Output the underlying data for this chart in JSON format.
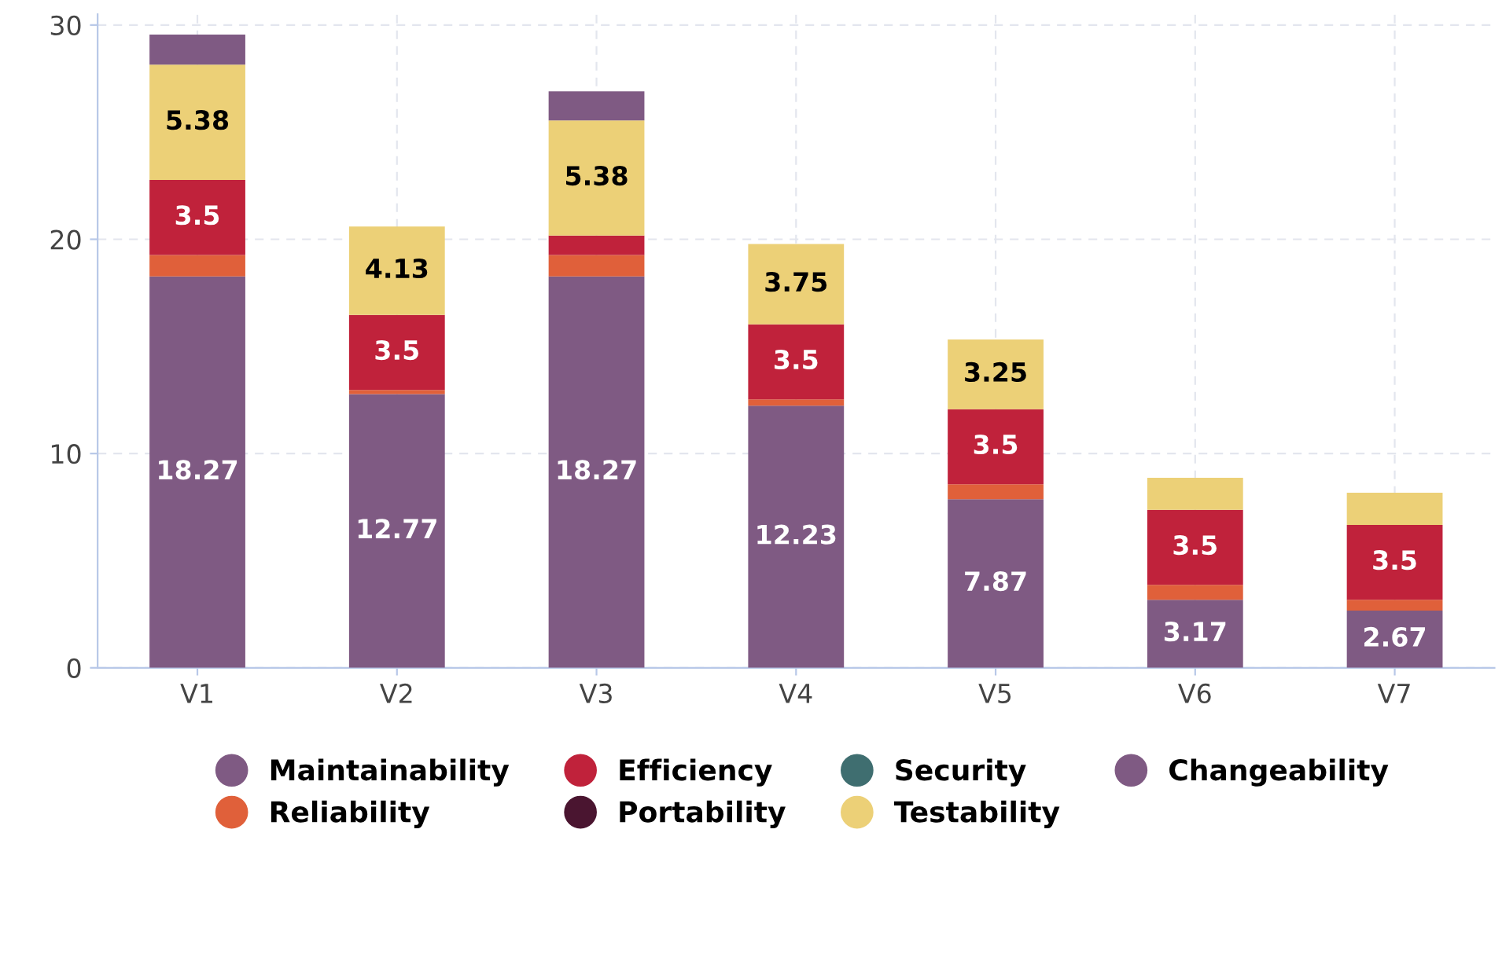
{
  "chart_data": {
    "type": "bar",
    "stacked": true,
    "categories": [
      "V1",
      "V2",
      "V3",
      "V4",
      "V5",
      "V6",
      "V7"
    ],
    "series": [
      {
        "name": "Maintainability",
        "color": "#7f5a83",
        "values": [
          18.27,
          12.77,
          18.27,
          12.23,
          7.87,
          3.17,
          2.67
        ],
        "value_labels": [
          "18.27",
          "12.77",
          "18.27",
          "12.23",
          "7.87",
          "3.17",
          "2.67"
        ]
      },
      {
        "name": "Reliability",
        "color": "#e0603a",
        "values": [
          1.0,
          0.2,
          1.0,
          0.3,
          0.7,
          0.7,
          0.5
        ]
      },
      {
        "name": "Efficiency",
        "color": "#c0223b",
        "values": [
          3.5,
          3.5,
          0.9,
          3.5,
          3.5,
          3.5,
          3.5
        ],
        "value_labels": [
          "3.5",
          "3.5",
          null,
          "3.5",
          "3.5",
          "3.5",
          "3.5"
        ]
      },
      {
        "name": "Portability",
        "color": "#4a1530",
        "values": [
          0,
          0,
          0,
          0,
          0,
          0,
          0
        ]
      },
      {
        "name": "Security",
        "color": "#3f6e70",
        "values": [
          0,
          0,
          0,
          0,
          0,
          0,
          0
        ]
      },
      {
        "name": "Testability",
        "color": "#ecd077",
        "values": [
          5.38,
          4.13,
          5.38,
          3.75,
          3.25,
          1.5,
          1.5
        ],
        "value_labels": [
          "5.38",
          "4.13",
          "5.38",
          "3.75",
          "3.25",
          null,
          null
        ]
      },
      {
        "name": "Changeability",
        "color": "#7f5a83",
        "values": [
          1.4,
          0,
          1.35,
          0,
          0,
          0,
          0
        ]
      }
    ],
    "ylim": [
      0,
      30.5
    ],
    "yticks": [
      0,
      10,
      20,
      30
    ],
    "grid": true,
    "legend": "bottom",
    "marker": "circle"
  }
}
